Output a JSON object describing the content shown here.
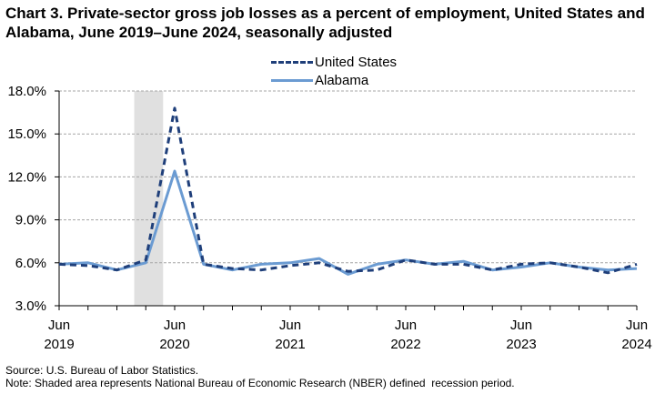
{
  "title": "Chart 3. Private-sector gross job losses as a percent of employment, United States and Alabama, June 2019–June 2024, seasonally adjusted",
  "chart_data": {
    "type": "line",
    "title": "Chart 3. Private-sector gross job losses as a percent of employment, United States and Alabama, June 2019–June 2024, seasonally adjusted",
    "xlabel": "",
    "ylabel": "",
    "x": [
      "Jun 2019",
      "Sep 2019",
      "Dec 2019",
      "Mar 2020",
      "Jun 2020",
      "Sep 2020",
      "Dec 2020",
      "Mar 2021",
      "Jun 2021",
      "Sep 2021",
      "Dec 2021",
      "Mar 2022",
      "Jun 2022",
      "Sep 2022",
      "Dec 2022",
      "Mar 2023",
      "Jun 2023",
      "Sep 2023",
      "Dec 2023",
      "Mar 2024",
      "Jun 2024"
    ],
    "x_tick_labels": [
      {
        "month": "Jun",
        "year": "2019",
        "index": 0
      },
      {
        "month": "Jun",
        "year": "2020",
        "index": 4
      },
      {
        "month": "Jun",
        "year": "2021",
        "index": 8
      },
      {
        "month": "Jun",
        "year": "2022",
        "index": 12
      },
      {
        "month": "Jun",
        "year": "2023",
        "index": 16
      },
      {
        "month": "Jun",
        "year": "2024",
        "index": 20
      }
    ],
    "ylim": [
      3.0,
      18.0
    ],
    "y_ticks": [
      3.0,
      6.0,
      9.0,
      12.0,
      15.0,
      18.0
    ],
    "y_tick_labels": [
      "3.0%",
      "6.0%",
      "9.0%",
      "12.0%",
      "15.0%",
      "18.0%"
    ],
    "grid": "horizontal dashed",
    "legend_position": "top-center",
    "recession_shading": {
      "from_index": 2.6,
      "to_index": 3.6
    },
    "series": [
      {
        "name": "United States",
        "style": "dashed",
        "color": "#1f3f7a",
        "values": [
          5.9,
          5.8,
          5.5,
          6.2,
          16.8,
          5.9,
          5.6,
          5.5,
          5.8,
          6.0,
          5.4,
          5.5,
          6.2,
          5.9,
          5.9,
          5.5,
          5.9,
          6.0,
          5.7,
          5.3,
          5.9
        ]
      },
      {
        "name": "Alabama",
        "style": "solid",
        "color": "#6b9bd2",
        "values": [
          5.9,
          6.0,
          5.5,
          6.0,
          12.4,
          5.9,
          5.5,
          5.9,
          6.0,
          6.3,
          5.2,
          5.9,
          6.2,
          5.9,
          6.1,
          5.5,
          5.7,
          6.0,
          5.7,
          5.5,
          5.6
        ]
      }
    ]
  },
  "notes": {
    "source": "Source: U.S. Bureau of Labor Statistics.",
    "note": "Note: Shaded area represents National Bureau of Economic Research (NBER) defined  recession period."
  },
  "colors": {
    "gridline": "#a6a6a6",
    "recession": "#e0e0e0",
    "axis": "#000000"
  }
}
